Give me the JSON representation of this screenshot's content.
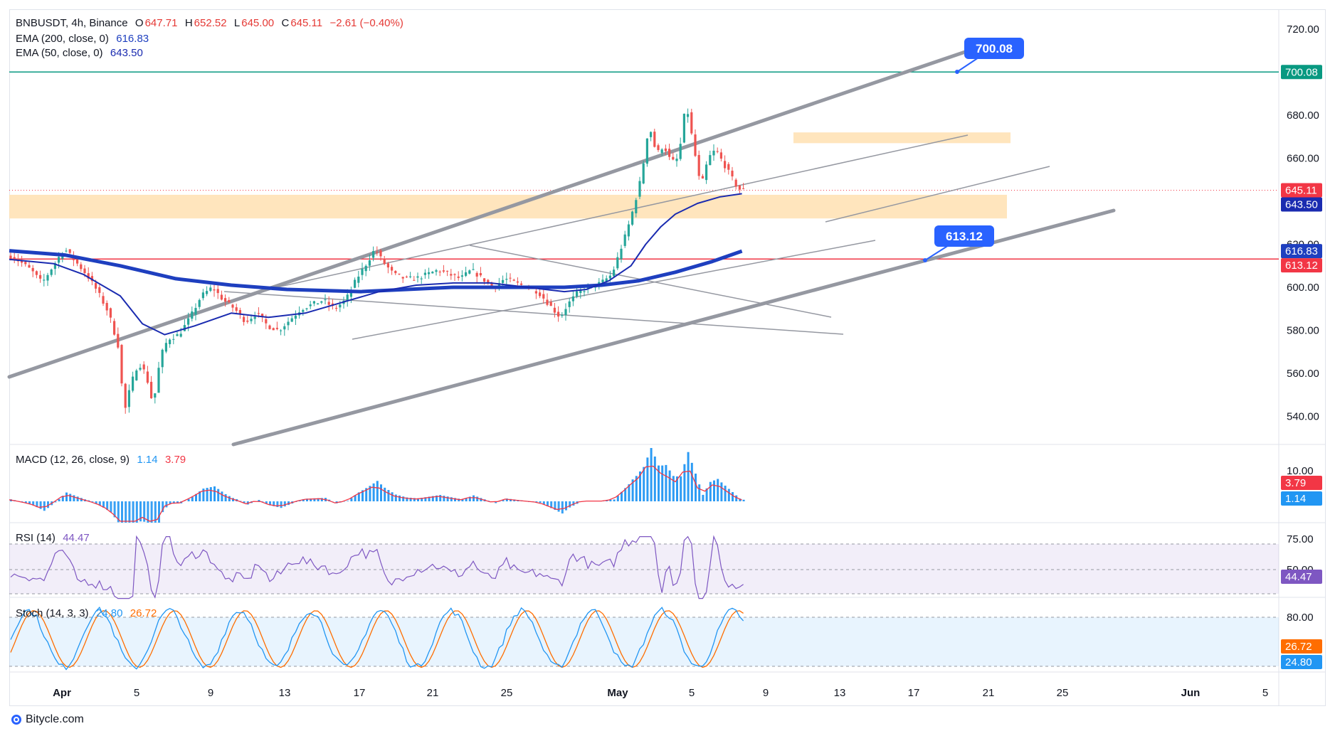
{
  "header": {
    "symbol": "BNBUSDT, 4h, Binance",
    "open_label": "O",
    "open": "647.71",
    "high_label": "H",
    "high": "652.52",
    "low_label": "L",
    "low": "645.00",
    "close_label": "C",
    "close": "645.11",
    "change": "−2.61 (−0.40%)"
  },
  "indicators": {
    "ema200": {
      "label": "EMA (200, close, 0)",
      "value": "616.83",
      "color": "#1e3fbf"
    },
    "ema50": {
      "label": "EMA (50, close, 0)",
      "value": "643.50",
      "color": "#1a2bb0"
    },
    "macd": {
      "label": "MACD (12, 26, close, 9)",
      "macd": "1.14",
      "signal": "3.79"
    },
    "rsi": {
      "label": "RSI (14)",
      "value": "44.47"
    },
    "stoch": {
      "label": "Stoch (14, 3, 3)",
      "k": "24.80",
      "d": "26.72"
    }
  },
  "colors": {
    "up": "#26a69a",
    "down": "#ef5350",
    "zone": "#ffe0b2",
    "level_green": "#089981",
    "level_red": "#f23645",
    "channel": "#9598a1",
    "rsi": "#7e57c2",
    "stoch_k": "#2196f3",
    "stoch_d": "#ff6d00"
  },
  "footer": {
    "brand": "Bitycle.com"
  },
  "chart_data": {
    "type": "candlestick",
    "symbol": "BNBUSDT",
    "timeframe": "4h",
    "exchange": "Binance",
    "y_ticks": [
      "720.00",
      "700.00",
      "680.00",
      "660.00",
      "640.00",
      "620.00",
      "600.00",
      "580.00",
      "560.00",
      "540.00"
    ],
    "x_ticks": [
      "Apr",
      "5",
      "9",
      "13",
      "17",
      "21",
      "25",
      "May",
      "5",
      "9",
      "13",
      "17",
      "21",
      "25",
      "Jun",
      "5"
    ],
    "macd_ticks": [
      "10.00"
    ],
    "rsi_ticks": [
      "75.00",
      "50.00"
    ],
    "stoch_ticks": [
      "80.00"
    ],
    "price_labels": {
      "resistance": "700.08",
      "last": "645.11",
      "ema50": "643.50",
      "ema200": "616.83",
      "support": "613.12"
    },
    "annotations": [
      "700.08",
      "613.12"
    ],
    "levels": [
      {
        "name": "resistance",
        "value": 700.08
      },
      {
        "name": "support",
        "value": 613.12
      }
    ],
    "zones": [
      {
        "from": 667,
        "to": 672
      },
      {
        "from": 632,
        "to": 643
      }
    ],
    "price_path": [
      [
        0,
        615
      ],
      [
        3,
        612
      ],
      [
        6,
        608
      ],
      [
        9,
        602
      ],
      [
        12,
        610
      ],
      [
        15,
        618
      ],
      [
        18,
        612
      ],
      [
        21,
        606
      ],
      [
        24,
        598
      ],
      [
        27,
        588
      ],
      [
        30,
        570
      ],
      [
        31,
        540
      ],
      [
        33,
        555
      ],
      [
        35,
        565
      ],
      [
        37,
        560
      ],
      [
        39,
        545
      ],
      [
        41,
        568
      ],
      [
        43,
        576
      ],
      [
        46,
        578
      ],
      [
        49,
        586
      ],
      [
        52,
        596
      ],
      [
        55,
        600
      ],
      [
        58,
        594
      ],
      [
        61,
        590
      ],
      [
        64,
        584
      ],
      [
        67,
        588
      ],
      [
        70,
        582
      ],
      [
        73,
        580
      ],
      [
        76,
        585
      ],
      [
        79,
        590
      ],
      [
        82,
        592
      ],
      [
        85,
        594
      ],
      [
        88,
        590
      ],
      [
        91,
        594
      ],
      [
        94,
        604
      ],
      [
        97,
        612
      ],
      [
        99,
        618
      ],
      [
        101,
        612
      ],
      [
        104,
        606
      ],
      [
        107,
        604
      ],
      [
        110,
        604
      ],
      [
        113,
        606
      ],
      [
        116,
        608
      ],
      [
        119,
        606
      ],
      [
        122,
        604
      ],
      [
        125,
        608
      ],
      [
        128,
        604
      ],
      [
        131,
        600
      ],
      [
        134,
        604
      ],
      [
        137,
        602
      ],
      [
        140,
        600
      ],
      [
        143,
        598
      ],
      [
        145,
        594
      ],
      [
        147,
        590
      ],
      [
        149,
        586
      ],
      [
        151,
        592
      ],
      [
        154,
        598
      ],
      [
        157,
        600
      ],
      [
        160,
        602
      ],
      [
        163,
        606
      ],
      [
        165,
        616
      ],
      [
        167,
        626
      ],
      [
        169,
        638
      ],
      [
        171,
        652
      ],
      [
        173,
        676
      ],
      [
        175,
        662
      ],
      [
        177,
        666
      ],
      [
        179,
        658
      ],
      [
        181,
        660
      ],
      [
        183,
        686
      ],
      [
        185,
        666
      ],
      [
        187,
        646
      ],
      [
        189,
        660
      ],
      [
        191,
        664
      ],
      [
        193,
        658
      ],
      [
        195,
        652
      ],
      [
        197,
        646
      ],
      [
        198,
        645.11
      ]
    ],
    "ema50_path": [
      [
        0,
        613
      ],
      [
        12,
        611
      ],
      [
        20,
        606
      ],
      [
        30,
        596
      ],
      [
        36,
        583
      ],
      [
        42,
        578
      ],
      [
        50,
        582
      ],
      [
        60,
        588
      ],
      [
        70,
        586
      ],
      [
        80,
        588
      ],
      [
        90,
        593
      ],
      [
        100,
        598
      ],
      [
        110,
        601
      ],
      [
        120,
        602
      ],
      [
        130,
        602
      ],
      [
        140,
        600
      ],
      [
        150,
        598
      ],
      [
        156,
        599
      ],
      [
        162,
        603
      ],
      [
        168,
        610
      ],
      [
        172,
        620
      ],
      [
        176,
        628
      ],
      [
        180,
        634
      ],
      [
        186,
        639
      ],
      [
        192,
        642
      ],
      [
        198,
        643.5
      ]
    ],
    "ema200_path": [
      [
        0,
        617
      ],
      [
        15,
        615
      ],
      [
        30,
        610
      ],
      [
        45,
        604
      ],
      [
        60,
        601
      ],
      [
        75,
        599
      ],
      [
        95,
        598
      ],
      [
        120,
        600
      ],
      [
        150,
        600
      ],
      [
        160,
        601
      ],
      [
        170,
        603
      ],
      [
        180,
        607
      ],
      [
        190,
        612
      ],
      [
        198,
        616.83
      ]
    ]
  }
}
